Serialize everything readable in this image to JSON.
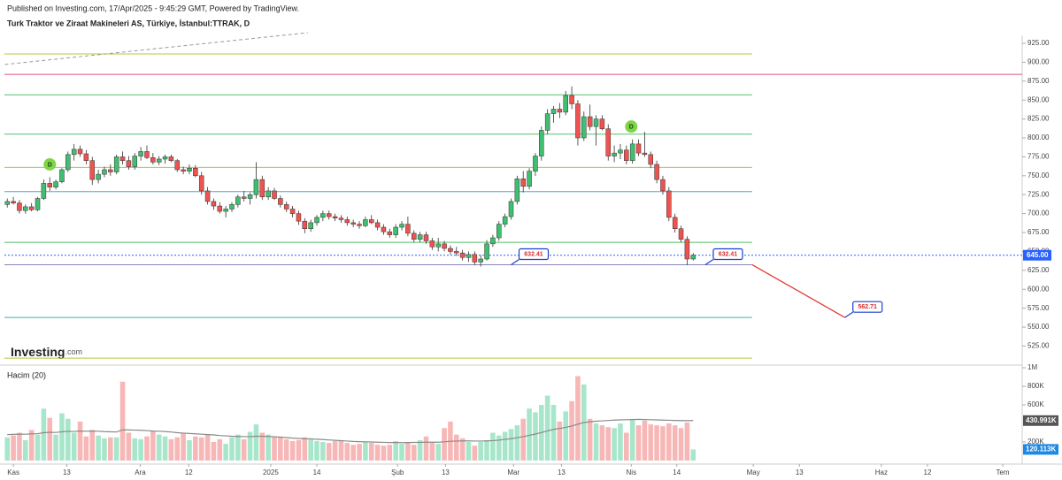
{
  "header": {
    "published": "Published on Investing.com, 17/Apr/2025 - 9:45:29 GMT, Powered by TradingView.",
    "symbol": "Turk Traktor ve Ziraat Makineleri AS, Türkiye, İstanbul:TTRAK, D",
    "watermark": [
      "Investing",
      ".com"
    ]
  },
  "chart_data": [
    {
      "type": "candlestick",
      "up_color": "#3fbf6f",
      "down_color": "#ef5350",
      "xlim": [
        -1.2,
        167.2
      ],
      "xticks": [
        {
          "value": 1,
          "label": "Kas"
        },
        {
          "value": 9.8,
          "label": "13"
        },
        {
          "value": 21.9,
          "label": "Ara"
        },
        {
          "value": 29.9,
          "label": "12"
        },
        {
          "value": 43.4,
          "label": "2025"
        },
        {
          "value": 51,
          "label": "14"
        },
        {
          "value": 64.3,
          "label": "Şub"
        },
        {
          "value": 72.2,
          "label": "13"
        },
        {
          "value": 83.4,
          "label": "Mar"
        },
        {
          "value": 91.3,
          "label": "13"
        },
        {
          "value": 102.8,
          "label": "Nis"
        },
        {
          "value": 110.3,
          "label": "14"
        },
        {
          "value": 122.9,
          "label": "May"
        },
        {
          "value": 130.5,
          "label": "13"
        },
        {
          "value": 144,
          "label": "Haz"
        },
        {
          "value": 151.6,
          "label": "12"
        },
        {
          "value": 164,
          "label": "Tem"
        }
      ],
      "ylim": [
        501,
        935.5
      ],
      "yticks": [
        {
          "value": 525,
          "label": "525.00"
        },
        {
          "value": 550,
          "label": "550.00"
        },
        {
          "value": 575,
          "label": "575.00"
        },
        {
          "value": 600,
          "label": "600.00"
        },
        {
          "value": 625,
          "label": "625.00"
        },
        {
          "value": 650,
          "label": "650.00"
        },
        {
          "value": 675,
          "label": "675.00"
        },
        {
          "value": 700,
          "label": "700.00"
        },
        {
          "value": 725,
          "label": "725.00"
        },
        {
          "value": 750,
          "label": "750.00"
        },
        {
          "value": 775,
          "label": "775.00"
        },
        {
          "value": 800,
          "label": "800.00"
        },
        {
          "value": 825,
          "label": "825.00"
        },
        {
          "value": 850,
          "label": "850.00"
        },
        {
          "value": 875,
          "label": "875.00"
        },
        {
          "value": 900,
          "label": "900.00"
        },
        {
          "value": 925,
          "label": "925.00"
        }
      ],
      "candles": [
        [
          712,
          720,
          708,
          716
        ],
        [
          716,
          722,
          712,
          714
        ],
        [
          714,
          718,
          700,
          704
        ],
        [
          704,
          712,
          700,
          709
        ],
        [
          709,
          714,
          703,
          705
        ],
        [
          705,
          722,
          703,
          720
        ],
        [
          720,
          745,
          718,
          740
        ],
        [
          740,
          748,
          730,
          735
        ],
        [
          735,
          745,
          732,
          742
        ],
        [
          742,
          760,
          740,
          758
        ],
        [
          758,
          782,
          755,
          778
        ],
        [
          778,
          792,
          770,
          785
        ],
        [
          785,
          790,
          775,
          779
        ],
        [
          779,
          784,
          765,
          770
        ],
        [
          770,
          775,
          738,
          745
        ],
        [
          745,
          758,
          740,
          752
        ],
        [
          752,
          762,
          748,
          758
        ],
        [
          758,
          765,
          750,
          755
        ],
        [
          755,
          778,
          752,
          775
        ],
        [
          775,
          782,
          765,
          770
        ],
        [
          770,
          776,
          758,
          762
        ],
        [
          762,
          780,
          758,
          776
        ],
        [
          776,
          788,
          770,
          782
        ],
        [
          782,
          790,
          772,
          774
        ],
        [
          774,
          780,
          765,
          768
        ],
        [
          768,
          776,
          764,
          772
        ],
        [
          772,
          778,
          766,
          775
        ],
        [
          775,
          778,
          768,
          770
        ],
        [
          770,
          772,
          755,
          758
        ],
        [
          758,
          762,
          752,
          756
        ],
        [
          756,
          765,
          752,
          760
        ],
        [
          760,
          764,
          748,
          750
        ],
        [
          750,
          755,
          725,
          730
        ],
        [
          730,
          735,
          712,
          716
        ],
        [
          716,
          720,
          705,
          710
        ],
        [
          710,
          715,
          700,
          703
        ],
        [
          703,
          710,
          695,
          706
        ],
        [
          706,
          715,
          702,
          712
        ],
        [
          712,
          725,
          708,
          722
        ],
        [
          722,
          730,
          716,
          720
        ],
        [
          720,
          728,
          712,
          725
        ],
        [
          725,
          768,
          720,
          745
        ],
        [
          745,
          750,
          718,
          722
        ],
        [
          722,
          735,
          718,
          730
        ],
        [
          730,
          734,
          718,
          720
        ],
        [
          720,
          724,
          708,
          712
        ],
        [
          712,
          716,
          702,
          706
        ],
        [
          706,
          710,
          695,
          700
        ],
        [
          700,
          704,
          685,
          690
        ],
        [
          690,
          694,
          674,
          680
        ],
        [
          680,
          692,
          676,
          688
        ],
        [
          688,
          698,
          684,
          695
        ],
        [
          695,
          704,
          690,
          700
        ],
        [
          700,
          704,
          692,
          696
        ],
        [
          696,
          700,
          690,
          694
        ],
        [
          694,
          698,
          688,
          692
        ],
        [
          692,
          696,
          684,
          688
        ],
        [
          688,
          692,
          682,
          686
        ],
        [
          686,
          690,
          680,
          684
        ],
        [
          684,
          696,
          682,
          692
        ],
        [
          692,
          698,
          686,
          688
        ],
        [
          688,
          692,
          678,
          682
        ],
        [
          682,
          686,
          672,
          676
        ],
        [
          676,
          680,
          668,
          672
        ],
        [
          672,
          686,
          668,
          682
        ],
        [
          682,
          690,
          678,
          686
        ],
        [
          686,
          696,
          670,
          674
        ],
        [
          674,
          678,
          662,
          666
        ],
        [
          666,
          676,
          662,
          672
        ],
        [
          672,
          676,
          660,
          664
        ],
        [
          664,
          668,
          652,
          656
        ],
        [
          656,
          668,
          650,
          660
        ],
        [
          660,
          664,
          650,
          654
        ],
        [
          654,
          658,
          646,
          650
        ],
        [
          650,
          656,
          644,
          648
        ],
        [
          648,
          652,
          638,
          642
        ],
        [
          642,
          650,
          636,
          646
        ],
        [
          646,
          650,
          632,
          636
        ],
        [
          636,
          645,
          630,
          640
        ],
        [
          640,
          665,
          638,
          660
        ],
        [
          660,
          672,
          656,
          668
        ],
        [
          668,
          690,
          664,
          686
        ],
        [
          686,
          700,
          682,
          696
        ],
        [
          696,
          720,
          692,
          716
        ],
        [
          716,
          750,
          712,
          746
        ],
        [
          746,
          756,
          728,
          736
        ],
        [
          736,
          760,
          732,
          756
        ],
        [
          756,
          780,
          750,
          776
        ],
        [
          776,
          815,
          770,
          810
        ],
        [
          810,
          838,
          805,
          832
        ],
        [
          832,
          842,
          820,
          838
        ],
        [
          838,
          846,
          826,
          834
        ],
        [
          834,
          862,
          830,
          856
        ],
        [
          856,
          868,
          838,
          845
        ],
        [
          845,
          850,
          790,
          800
        ],
        [
          800,
          835,
          796,
          828
        ],
        [
          828,
          844,
          810,
          815
        ],
        [
          815,
          830,
          790,
          825
        ],
        [
          825,
          830,
          810,
          812
        ],
        [
          812,
          818,
          770,
          776
        ],
        [
          776,
          790,
          768,
          780
        ],
        [
          780,
          792,
          772,
          784
        ],
        [
          784,
          790,
          765,
          770
        ],
        [
          770,
          798,
          766,
          792
        ],
        [
          792,
          798,
          776,
          780
        ],
        [
          780,
          808,
          775,
          778
        ],
        [
          778,
          782,
          760,
          765
        ],
        [
          765,
          770,
          740,
          745
        ],
        [
          745,
          750,
          725,
          730
        ],
        [
          730,
          735,
          690,
          695
        ],
        [
          695,
          700,
          675,
          680
        ],
        [
          680,
          684,
          662,
          666
        ],
        [
          666,
          670,
          632,
          640
        ],
        [
          640,
          648,
          638,
          645
        ]
      ],
      "levels": [
        {
          "value": 911,
          "color": "#b5c834",
          "end": 122.7
        },
        {
          "value": 884,
          "color": "#e0507a",
          "end": 167.2
        },
        {
          "value": 857,
          "color": "#55c06a",
          "end": 122.7
        },
        {
          "value": 805,
          "color": "#55c06a",
          "end": 122.7
        },
        {
          "value": 761,
          "color": "#a6cc3a",
          "end": 122.7
        },
        {
          "value": 729,
          "color": "#4fa3d8",
          "end": 122.7
        },
        {
          "value": 662,
          "color": "#55c06a",
          "end": 122.7
        },
        {
          "value": 645,
          "color": "#2962ff",
          "end": 167.2,
          "dotted": true
        },
        {
          "value": 632.41,
          "color": "#8a86b8",
          "end": 122.7
        },
        {
          "value": 562.71,
          "color": "#3bb3b0",
          "end": 122.7
        },
        {
          "value": 509,
          "color": "#b5c834",
          "end": 122.7
        }
      ],
      "price_label": {
        "value": 645,
        "label": "645.00"
      },
      "callouts": [
        {
          "x": 83,
          "value": 632.41
        },
        {
          "x": 115,
          "value": 632.41
        },
        {
          "x": 138,
          "value": 562.71
        }
      ],
      "projection": {
        "x": [
          122.7,
          138
        ],
        "values": [
          632.41,
          562.71
        ],
        "color": "#e53935"
      },
      "trendline": {
        "x": [
          -0.4,
          49.5
        ],
        "values": [
          897,
          939
        ],
        "color": "#999999"
      },
      "markers": [
        {
          "x": 7,
          "value": 765,
          "label": "D"
        },
        {
          "x": 102.8,
          "value": 815,
          "label": "D"
        }
      ]
    },
    {
      "type": "volume",
      "title": "Hacim (20)",
      "up_color": "#a8e6cb",
      "down_color": "#f7b7b7",
      "ylim": [
        0,
        1010000
      ],
      "yticks": [
        {
          "value": 200000,
          "label": "200K"
        },
        {
          "value": 600000,
          "label": "600K"
        },
        {
          "value": 800000,
          "label": "800K"
        },
        {
          "value": 1000000,
          "label": "1M"
        }
      ],
      "values": [
        250000,
        270000,
        300000,
        220000,
        330000,
        280000,
        560000,
        460000,
        280000,
        510000,
        450000,
        300000,
        420000,
        260000,
        330000,
        270000,
        240000,
        250000,
        250000,
        850000,
        300000,
        240000,
        230000,
        260000,
        320000,
        280000,
        260000,
        230000,
        250000,
        300000,
        220000,
        260000,
        250000,
        280000,
        200000,
        230000,
        180000,
        250000,
        280000,
        230000,
        310000,
        390000,
        300000,
        280000,
        250000,
        260000,
        230000,
        210000,
        220000,
        250000,
        230000,
        210000,
        200000,
        190000,
        210000,
        220000,
        190000,
        170000,
        180000,
        200000,
        190000,
        170000,
        160000,
        170000,
        210000,
        180000,
        200000,
        170000,
        220000,
        260000,
        200000,
        180000,
        350000,
        420000,
        280000,
        240000,
        200000,
        160000,
        200000,
        220000,
        300000,
        270000,
        310000,
        340000,
        380000,
        450000,
        560000,
        520000,
        600000,
        700000,
        600000,
        420000,
        530000,
        640000,
        910000,
        820000,
        450000,
        400000,
        380000,
        360000,
        350000,
        400000,
        300000,
        440000,
        380000,
        430000,
        390000,
        380000,
        370000,
        400000,
        380000,
        350000,
        410000,
        120113
      ],
      "last_label": "120.113K",
      "ma": {
        "color": "#8a8a8a",
        "last_label": "430.991K",
        "values": [
          280000,
          282000,
          285000,
          284000,
          288000,
          290000,
          300000,
          305000,
          303000,
          310000,
          315000,
          314000,
          318000,
          316000,
          318000,
          316000,
          312000,
          310000,
          308000,
          330000,
          330000,
          328000,
          326000,
          322000,
          318000,
          316000,
          312000,
          308000,
          300000,
          296000,
          292000,
          288000,
          284000,
          280000,
          276000,
          270000,
          266000,
          262000,
          260000,
          258000,
          258000,
          262000,
          262000,
          260000,
          256000,
          252000,
          248000,
          242000,
          238000,
          236000,
          234000,
          230000,
          226000,
          222000,
          218000,
          214000,
          210000,
          206000,
          204000,
          202000,
          200000,
          198000,
          196000,
          194000,
          194000,
          193000,
          194000,
          195000,
          196000,
          198000,
          198000,
          198000,
          202000,
          208000,
          210000,
          212000,
          212000,
          210000,
          210000,
          212000,
          215000,
          220000,
          228000,
          236000,
          246000,
          258000,
          272000,
          286000,
          302000,
          320000,
          336000,
          346000,
          358000,
          372000,
          392000,
          410000,
          418000,
          424000,
          428000,
          432000,
          436000,
          438000,
          440000,
          442000,
          444000,
          442000,
          440000,
          438000,
          436000,
          434000,
          432000,
          431000,
          430000,
          430991
        ]
      }
    }
  ]
}
